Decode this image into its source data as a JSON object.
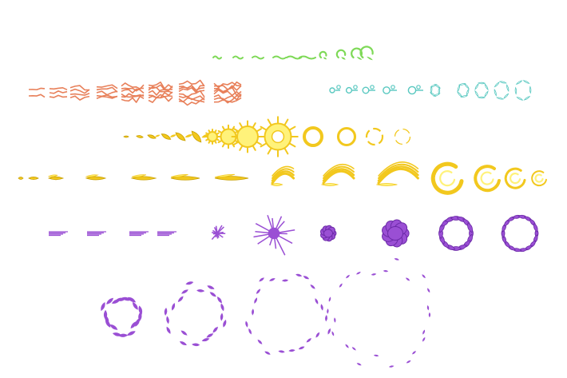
{
  "sheet": {
    "title": "",
    "palette": {
      "green": "#7ed957",
      "red": "#e8805a",
      "teal": "#58c8c0",
      "gold": "#f2c81e",
      "gold_light": "#fff27a",
      "purple": "#9a4fd4",
      "purple_dark": "#6c2aa8"
    },
    "rows": [
      {
        "id": "green-wind",
        "color": "green",
        "frames": 10,
        "icon": "wind-streak-sprite"
      },
      {
        "id": "red-spark",
        "color": "red",
        "frames": 9,
        "icon": "spark-crack-sprite"
      },
      {
        "id": "teal-bubble",
        "color": "teal",
        "frames": 9,
        "icon": "bubble-burst-sprite"
      },
      {
        "id": "gold-burst",
        "color": "gold",
        "frames": 13,
        "icon": "fire-burst-sprite"
      },
      {
        "id": "gold-swirl",
        "color": "gold",
        "frames": 14,
        "icon": "wind-swirl-sprite"
      },
      {
        "id": "purple-explosion",
        "color": "purple",
        "frames": 11,
        "icon": "void-explosion-sprite"
      },
      {
        "id": "purple-shards",
        "color": "purple",
        "frames": 4,
        "icon": "shard-ring-sprite"
      }
    ]
  }
}
